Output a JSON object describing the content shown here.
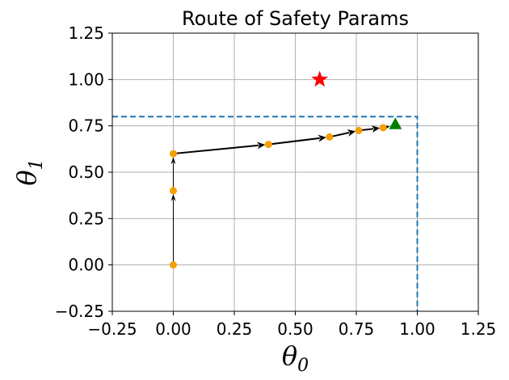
{
  "chart_data": {
    "type": "scatter",
    "title": "Route of Safety Params",
    "xlabel": {
      "symbol": "θ",
      "subscript": "0"
    },
    "ylabel": {
      "symbol": "θ",
      "subscript": "1"
    },
    "xlim": [
      -0.25,
      1.25
    ],
    "ylim": [
      -0.25,
      1.25
    ],
    "xticks": [
      -0.25,
      0.0,
      0.25,
      0.5,
      0.75,
      1.0,
      1.25
    ],
    "yticks": [
      -0.25,
      0.0,
      0.25,
      0.5,
      0.75,
      1.0,
      1.25
    ],
    "xtick_labels": [
      "−0.25",
      "0.00",
      "0.25",
      "0.50",
      "0.75",
      "1.00",
      "1.25"
    ],
    "ytick_labels": [
      "−0.25",
      "0.00",
      "0.25",
      "0.50",
      "0.75",
      "1.00",
      "1.25"
    ],
    "grid": true,
    "route": {
      "color": "#f5a000",
      "points": [
        [
          0.0,
          0.0
        ],
        [
          0.0,
          0.4
        ],
        [
          0.0,
          0.6
        ],
        [
          0.39,
          0.65
        ],
        [
          0.64,
          0.69
        ],
        [
          0.76,
          0.725
        ],
        [
          0.86,
          0.74
        ]
      ]
    },
    "final_point": {
      "x": 0.91,
      "y": 0.76,
      "marker": "triangle",
      "color": "#008000"
    },
    "target_point": {
      "x": 0.6,
      "y": 1.0,
      "marker": "star",
      "color": "#ff0000"
    },
    "safety_boundary": {
      "x": 1.0,
      "y": 0.8,
      "style": "dashed",
      "color": "#1f77b4"
    }
  }
}
